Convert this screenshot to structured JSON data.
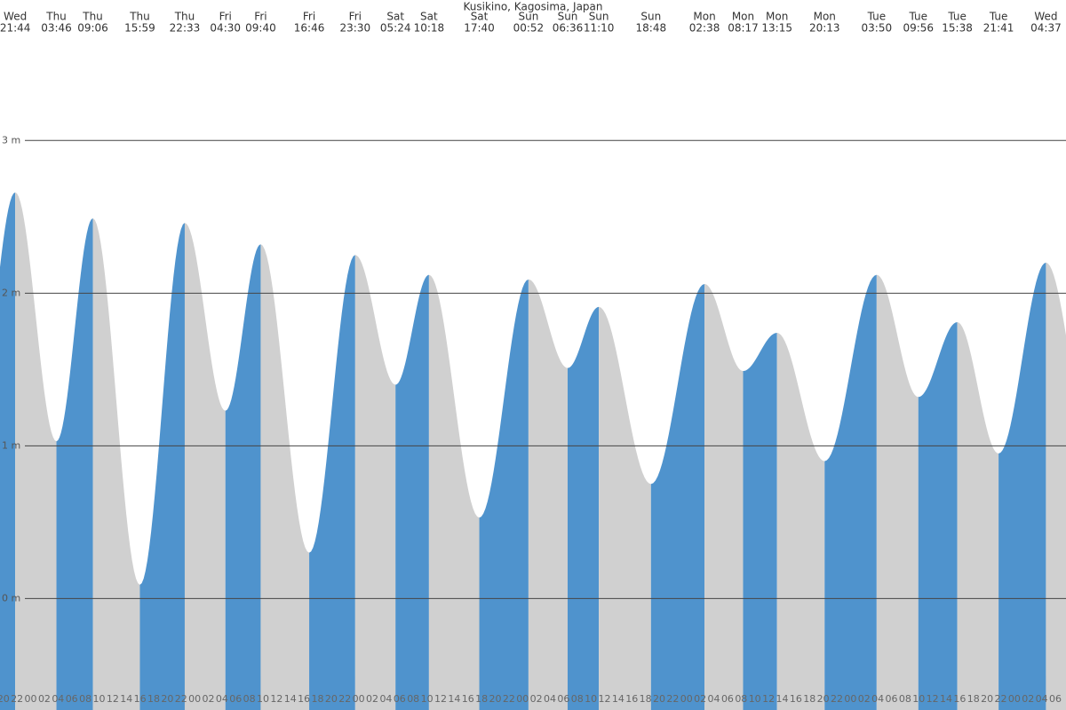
{
  "chart_data": {
    "type": "area",
    "title": "Kusikino, Kagosima, Japan",
    "rising_color": "#4f93cd",
    "falling_color": "#d0d0d0",
    "grid": true,
    "ylim": [
      -0.73,
      3.92
    ],
    "yticks": [
      {
        "value": 0,
        "label": "0 m"
      },
      {
        "value": 1,
        "label": "1 m"
      },
      {
        "value": 2,
        "label": "2 m"
      },
      {
        "value": 3,
        "label": "3 m"
      }
    ],
    "extremes": [
      {
        "day": "Wed",
        "time": "21:44",
        "height": 2.66
      },
      {
        "day": "Thu",
        "time": "03:46",
        "height": 1.03
      },
      {
        "day": "Thu",
        "time": "09:06",
        "height": 2.49
      },
      {
        "day": "Thu",
        "time": "15:59",
        "height": 0.09
      },
      {
        "day": "Thu",
        "time": "22:33",
        "height": 2.46
      },
      {
        "day": "Fri",
        "time": "04:30",
        "height": 1.23
      },
      {
        "day": "Fri",
        "time": "09:40",
        "height": 2.32
      },
      {
        "day": "Fri",
        "time": "16:46",
        "height": 0.3
      },
      {
        "day": "Fri",
        "time": "23:30",
        "height": 2.25
      },
      {
        "day": "Sat",
        "time": "05:24",
        "height": 1.4
      },
      {
        "day": "Sat",
        "time": "10:18",
        "height": 2.12
      },
      {
        "day": "Sat",
        "time": "17:40",
        "height": 0.53
      },
      {
        "day": "Sun",
        "time": "00:52",
        "height": 2.09
      },
      {
        "day": "Sun",
        "time": "06:36",
        "height": 1.51
      },
      {
        "day": "Sun",
        "time": "11:10",
        "height": 1.91
      },
      {
        "day": "Sun",
        "time": "18:48",
        "height": 0.75
      },
      {
        "day": "Mon",
        "time": "02:38",
        "height": 2.06
      },
      {
        "day": "Mon",
        "time": "08:17",
        "height": 1.49
      },
      {
        "day": "Mon",
        "time": "13:15",
        "height": 1.74
      },
      {
        "day": "Mon",
        "time": "20:13",
        "height": 0.9
      },
      {
        "day": "Tue",
        "time": "03:50",
        "height": 2.12
      },
      {
        "day": "Tue",
        "time": "09:56",
        "height": 1.32
      },
      {
        "day": "Tue",
        "time": "15:38",
        "height": 1.81
      },
      {
        "day": "Tue",
        "time": "21:41",
        "height": 0.95
      },
      {
        "day": "Wed",
        "time": "04:37",
        "height": 2.2
      }
    ],
    "hour_labels": [
      "20",
      "22",
      "00",
      "02",
      "04",
      "06",
      "08",
      "10",
      "12",
      "14",
      "16",
      "18",
      "20",
      "22",
      "00",
      "02",
      "04",
      "06",
      "08",
      "10",
      "12",
      "14",
      "16",
      "18",
      "20",
      "22",
      "00",
      "02",
      "04",
      "06",
      "08",
      "10",
      "12",
      "14",
      "16",
      "18",
      "20",
      "22",
      "00",
      "02",
      "04",
      "06",
      "08",
      "10",
      "12",
      "14",
      "16",
      "18",
      "20",
      "22",
      "00",
      "02",
      "04",
      "06",
      "08",
      "10",
      "12",
      "14",
      "16",
      "18",
      "20",
      "22",
      "00",
      "02",
      "04",
      "06",
      "08",
      "10",
      "12",
      "14",
      "16",
      "18",
      "20",
      "22",
      "00",
      "02",
      "04",
      "06"
    ]
  }
}
